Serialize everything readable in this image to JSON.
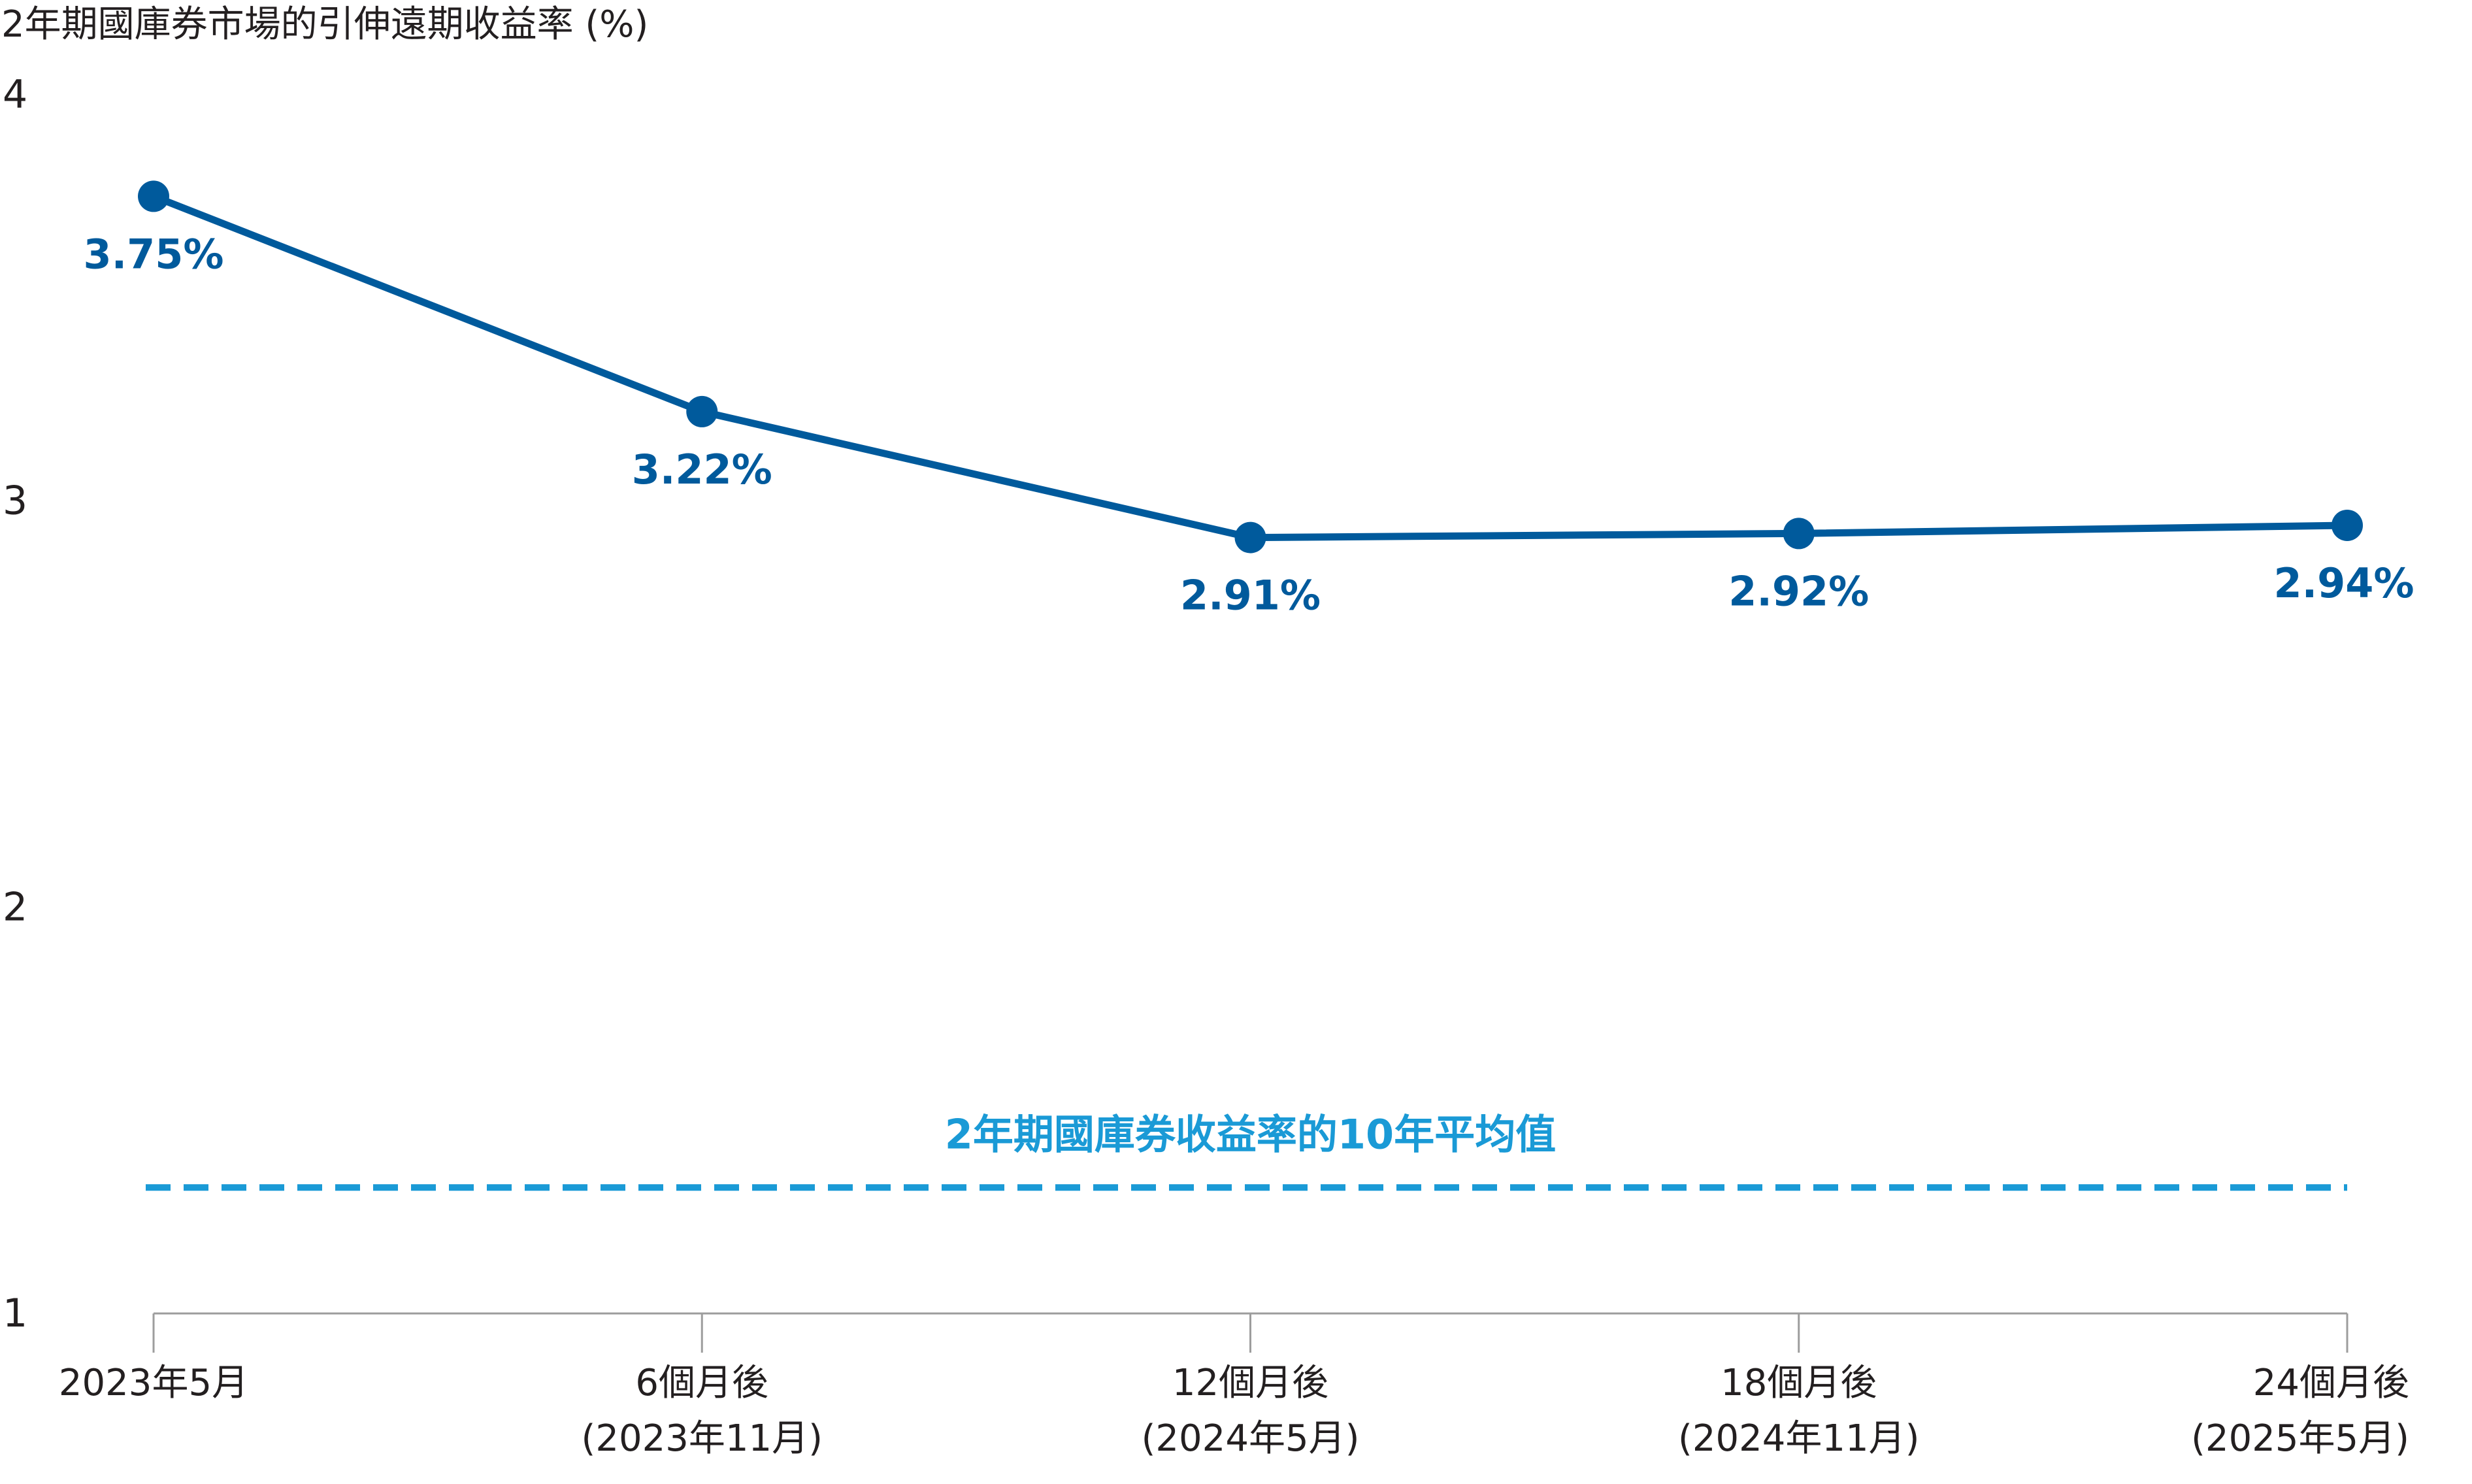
{
  "chart_data": {
    "type": "line",
    "title": "",
    "ylabel": "2年期國庫券市場的引伸遠期收益率 (%)",
    "xlabel": "",
    "ylim": [
      1,
      4
    ],
    "yticks": [
      "1",
      "2",
      "3",
      "4"
    ],
    "grid": false,
    "categories": [
      [
        "2023年5月"
      ],
      [
        "6個月後",
        "(2023年11月)"
      ],
      [
        "12個月後",
        "(2024年5月)"
      ],
      [
        "18個月後",
        "(2024年11月)"
      ],
      [
        "24個月後",
        "(2025年5月)"
      ]
    ],
    "series": [
      {
        "values": [
          3.75,
          3.22,
          2.91,
          2.92,
          2.94
        ],
        "labels": [
          "3.75%",
          "3.22%",
          "2.91%",
          "2.92%",
          "2.94%"
        ],
        "color": "#005a9c"
      }
    ],
    "reference_line": {
      "label": "2年期國庫券收益率的10年平均值",
      "value": 1.31,
      "style": "dashed",
      "color": "#1a9ad6"
    }
  }
}
